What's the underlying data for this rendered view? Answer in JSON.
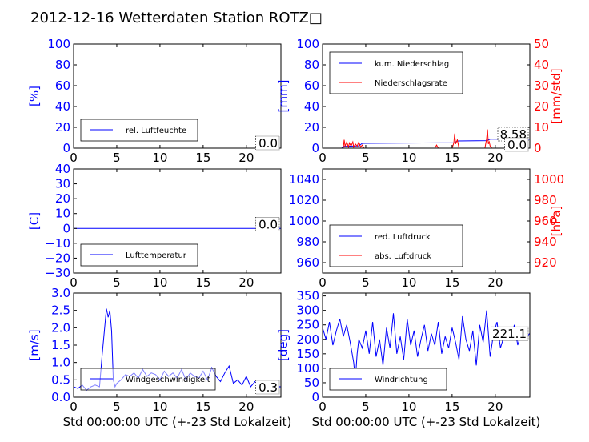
{
  "title": "2012-12-16 Wetterdaten Station ROTZ□",
  "colors": {
    "primary": "#0000ff",
    "secondary": "#ff0000",
    "frame": "#000000"
  },
  "chart_data": [
    {
      "id": "humidity",
      "type": "line",
      "xlim": [
        0,
        24
      ],
      "xticks": [
        0,
        5,
        10,
        15,
        20
      ],
      "ylim": [
        0,
        100
      ],
      "yticks": [
        0,
        20,
        40,
        60,
        80,
        100
      ],
      "ylabel": "[%]",
      "series": [
        {
          "name": "rel. Luftfeuchte",
          "color": "#0000ff",
          "x": [
            0,
            24
          ],
          "y": [
            0,
            0
          ]
        }
      ],
      "value_label": "0.0",
      "legend_position": "lower-left"
    },
    {
      "id": "precipitation",
      "type": "line",
      "xlim": [
        0,
        24
      ],
      "xticks": [
        0,
        5,
        10,
        15,
        20
      ],
      "ylim": [
        0,
        100
      ],
      "yticks": [
        0,
        20,
        40,
        60,
        80,
        100
      ],
      "ylabel": "[mm]",
      "y2lim": [
        0,
        50
      ],
      "y2ticks": [
        0,
        10,
        20,
        30,
        40,
        50
      ],
      "y2label": "[mm/std]",
      "series": [
        {
          "name": "kum. Niederschlag",
          "color": "#0000ff",
          "axis": "left",
          "x": [
            0,
            2.2,
            2.5,
            4.2,
            4.6,
            15.3,
            15.6,
            19,
            19.4,
            24
          ],
          "y": [
            0,
            0,
            1.8,
            2.2,
            4.6,
            5.2,
            6.9,
            7.2,
            8.58,
            8.58
          ]
        },
        {
          "name": "Niederschlagsrate",
          "color": "#ff0000",
          "axis": "right",
          "x": [
            0,
            2.4,
            2.5,
            2.6,
            2.8,
            3.0,
            3.1,
            3.3,
            3.5,
            3.6,
            3.8,
            4.0,
            4.2,
            4.4,
            4.6,
            4.8,
            5.0,
            13.0,
            13.2,
            13.4,
            15.0,
            15.2,
            15.3,
            15.4,
            15.6,
            15.8,
            18.8,
            19.0,
            19.1,
            19.2,
            19.3,
            19.4,
            19.6,
            24
          ],
          "y": [
            0,
            0,
            4,
            1,
            3,
            0.5,
            2.5,
            1,
            3,
            0.5,
            2,
            1,
            3,
            0.5,
            1.5,
            0,
            0,
            0,
            1.5,
            0,
            0,
            2.5,
            7,
            2,
            4,
            0,
            0,
            4.5,
            9,
            2,
            3,
            1,
            0,
            0
          ]
        }
      ],
      "value_label": "8.58",
      "value_label_2": "0.0",
      "legend_position": "upper-left"
    },
    {
      "id": "temperature",
      "type": "line",
      "xlim": [
        0,
        24
      ],
      "xticks": [
        0,
        5,
        10,
        15,
        20
      ],
      "ylim": [
        -30,
        40
      ],
      "yticks": [
        -30,
        -20,
        -10,
        0,
        10,
        20,
        30,
        40
      ],
      "ylabel": "[C]",
      "series": [
        {
          "name": "Lufttemperatur",
          "color": "#0000ff",
          "x": [
            0,
            24
          ],
          "y": [
            0,
            0
          ]
        }
      ],
      "value_label": "0.0",
      "legend_position": "lower-left"
    },
    {
      "id": "pressure",
      "type": "line",
      "xlim": [
        0,
        24
      ],
      "xticks": [
        0,
        5,
        10,
        15,
        20
      ],
      "ylim": [
        950,
        1050
      ],
      "yticks": [
        960,
        980,
        1000,
        1020,
        1040
      ],
      "y2lim": [
        910,
        1010
      ],
      "y2ticks": [
        920,
        940,
        960,
        980,
        1000
      ],
      "y2label": "[hPa]",
      "series": [
        {
          "name": "red. Luftdruck",
          "color": "#0000ff",
          "axis": "left",
          "x": [],
          "y": []
        },
        {
          "name": "abs. Luftdruck",
          "color": "#ff0000",
          "axis": "right",
          "x": [],
          "y": []
        }
      ],
      "legend_position": "lower-left"
    },
    {
      "id": "windspeed",
      "type": "line",
      "xlim": [
        0,
        24
      ],
      "xticks": [
        0,
        5,
        10,
        15,
        20
      ],
      "ylim": [
        0,
        3.0
      ],
      "yticks": [
        0.0,
        0.5,
        1.0,
        1.5,
        2.0,
        2.5,
        3.0
      ],
      "ylabel": "[m/s]",
      "xlabel": "Std 00:00:00 UTC (+-23 Std Lokalzeit)",
      "series": [
        {
          "name": "Windgeschwindigkeit",
          "color": "#0000ff",
          "x": [
            0,
            0.5,
            1,
            1.5,
            2,
            2.5,
            3,
            3.3,
            3.6,
            3.8,
            4,
            4.2,
            4.4,
            4.6,
            4.8,
            5,
            5.5,
            6,
            6.5,
            7,
            7.5,
            8,
            8.5,
            9,
            9.5,
            10,
            10.5,
            11,
            11.5,
            12,
            12.5,
            13,
            13.5,
            14,
            14.5,
            15,
            15.5,
            16,
            16.5,
            17,
            17.5,
            18,
            18.5,
            19,
            19.5,
            20,
            20.5,
            21,
            21.5,
            22,
            22.5,
            23,
            23.5,
            24
          ],
          "y": [
            0.3,
            0.25,
            0.35,
            0.2,
            0.3,
            0.35,
            0.3,
            1.2,
            2.0,
            2.55,
            2.3,
            2.5,
            1.9,
            0.5,
            0.3,
            0.4,
            0.5,
            0.65,
            0.6,
            0.7,
            0.55,
            0.8,
            0.6,
            0.7,
            0.65,
            0.5,
            0.75,
            0.6,
            0.7,
            0.55,
            0.8,
            0.5,
            0.7,
            0.6,
            0.55,
            0.75,
            0.5,
            0.85,
            0.6,
            0.45,
            0.7,
            0.9,
            0.4,
            0.5,
            0.35,
            0.6,
            0.3,
            0.45,
            0.3,
            0.4,
            0.25,
            0.35,
            0.3,
            0.3
          ]
        }
      ],
      "value_label": "0.3",
      "legend_position": "lower-center"
    },
    {
      "id": "winddir",
      "type": "line",
      "xlim": [
        0,
        24
      ],
      "xticks": [
        0,
        5,
        10,
        15,
        20
      ],
      "ylim": [
        0,
        360
      ],
      "yticks": [
        0,
        50,
        100,
        150,
        200,
        250,
        300,
        350
      ],
      "ylabel": "[deg]",
      "xlabel": "Std 00:00:00 UTC (+-23 Std Lokalzeit)",
      "series": [
        {
          "name": "Windrichtung",
          "color": "#0000ff",
          "x": [
            0,
            0.4,
            0.8,
            1.2,
            1.6,
            2,
            2.4,
            2.8,
            3.2,
            3.6,
            3.8,
            4.0,
            4.2,
            4.6,
            5,
            5.4,
            5.8,
            6.2,
            6.6,
            7,
            7.4,
            7.8,
            8.2,
            8.6,
            9,
            9.4,
            9.8,
            10.2,
            10.6,
            11,
            11.4,
            11.8,
            12.2,
            12.6,
            13,
            13.4,
            13.8,
            14.2,
            14.6,
            15,
            15.4,
            15.8,
            16.2,
            16.6,
            17,
            17.4,
            17.8,
            18.2,
            18.6,
            19,
            19.4,
            19.8,
            20.2,
            20.6,
            21,
            21.4,
            21.8,
            22.2,
            22.6,
            23,
            23.4,
            24
          ],
          "y": [
            240,
            200,
            260,
            180,
            230,
            270,
            210,
            250,
            190,
            120,
            60,
            150,
            200,
            170,
            230,
            150,
            260,
            140,
            200,
            110,
            240,
            170,
            290,
            150,
            210,
            130,
            270,
            180,
            230,
            140,
            200,
            250,
            160,
            220,
            180,
            260,
            150,
            210,
            170,
            240,
            190,
            130,
            280,
            200,
            160,
            230,
            110,
            250,
            190,
            300,
            140,
            220,
            260,
            170,
            210,
            230,
            200,
            250,
            180,
            220,
            200,
            221
          ]
        }
      ],
      "value_label": "221.1",
      "legend_position": "lower-left"
    }
  ]
}
